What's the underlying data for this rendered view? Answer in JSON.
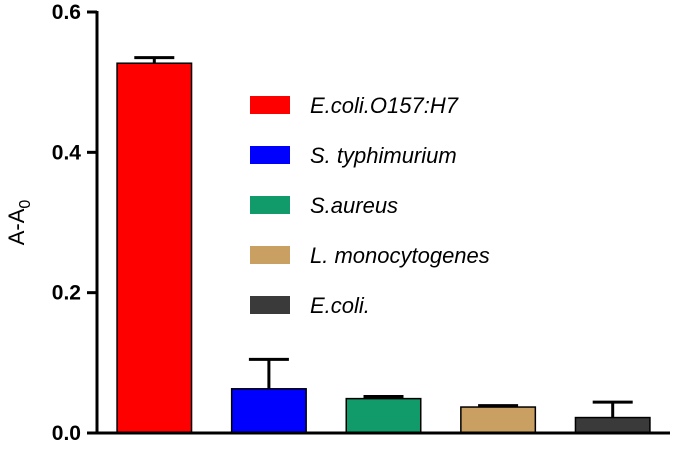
{
  "chart_data": {
    "type": "bar",
    "ylabel": "A-A",
    "ylabel_subscript": "0",
    "ylim": [
      0,
      0.6
    ],
    "yticks": [
      "0.0",
      "0.2",
      "0.4",
      "0.6"
    ],
    "categories": [
      "E.coli.O157:H7",
      "S. typhimurium",
      "S.aureus",
      "L. monocytogenes",
      "E.coli."
    ],
    "values": [
      0.527,
      0.063,
      0.049,
      0.037,
      0.022
    ],
    "errors": [
      0.008,
      0.042,
      0.003,
      0.002,
      0.022
    ],
    "colors": [
      "#ff0000",
      "#0000ff",
      "#119a6a",
      "#c9a062",
      "#3a3a3a"
    ],
    "legend": {
      "position": "upper-right",
      "items": [
        {
          "label": "E.coli.O157:H7",
          "color": "#ff0000"
        },
        {
          "label": "S. typhimurium",
          "color": "#0000ff"
        },
        {
          "label": "S.aureus",
          "color": "#119a6a"
        },
        {
          "label": "L. monocytogenes",
          "color": "#c9a062"
        },
        {
          "label": "E.coli.",
          "color": "#3a3a3a"
        }
      ]
    },
    "grid": false
  }
}
